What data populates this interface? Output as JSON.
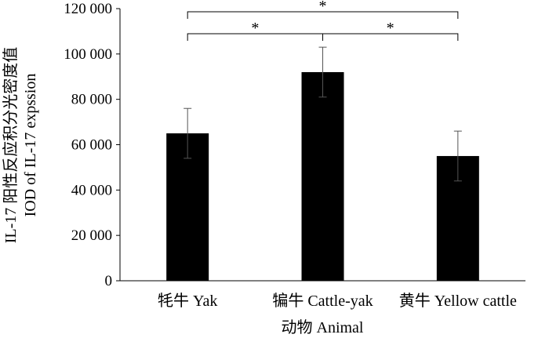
{
  "chart_data": {
    "type": "bar",
    "categories": [
      "牦牛 Yak",
      "犏牛 Cattle-yak",
      "黄牛 Yellow cattle"
    ],
    "values": [
      65000,
      92000,
      55000
    ],
    "error": [
      11000,
      11000,
      11000
    ],
    "title": "",
    "xlabel": "动物 Animal",
    "ylabel_lines": [
      "IL-17 阳性反应积分光密度值",
      "IOD of IL-17 expssion"
    ],
    "ylim": [
      0,
      120000
    ],
    "yticks": [
      "0",
      "20 000",
      "40 000",
      "60 000",
      "80 000",
      "100 000",
      "120 000"
    ],
    "ytick_values": [
      0,
      20000,
      40000,
      60000,
      80000,
      100000,
      120000
    ],
    "grid": false,
    "legend": "none",
    "bar_color": "#000000",
    "significance": [
      {
        "from": 0,
        "to": 2,
        "label": "*"
      },
      {
        "from": 0,
        "to": 1,
        "label": "*"
      },
      {
        "from": 1,
        "to": 2,
        "label": "*"
      }
    ]
  }
}
